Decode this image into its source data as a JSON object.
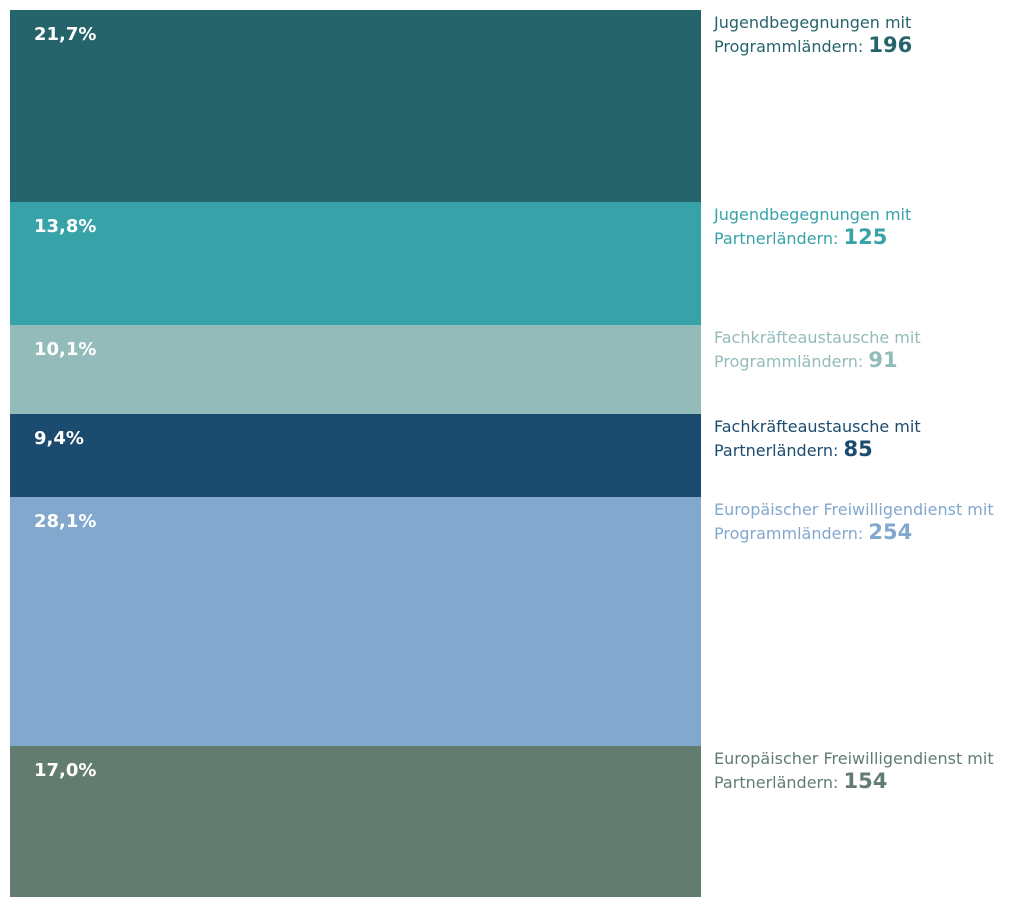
{
  "chart_data": {
    "type": "stacked_bar",
    "ylim": [
      0,
      100
    ],
    "series": [
      {
        "name": "Jugendbegegnungen mit Programmländern:",
        "color": "#25646a",
        "values": [
          21.7
        ],
        "value_labels": [
          "21,7%"
        ],
        "count": 196
      },
      {
        "name": "Jugendbegegnungen mit Partnerländern:",
        "color": "#37a3a8",
        "values": [
          13.8
        ],
        "value_labels": [
          "13,8%"
        ],
        "count": 125
      },
      {
        "name": "Fachkräfteaustausche mit Programmländern:",
        "color": "#93bbb9",
        "values": [
          10.1
        ],
        "value_labels": [
          "10,1%"
        ],
        "count": 91
      },
      {
        "name": "Fachkräfteaustausche mit Partnerländern:",
        "color": "#1b4b6e",
        "values": [
          9.4
        ],
        "value_labels": [
          "9,4%"
        ],
        "count": 85
      },
      {
        "name": "Europäischer Freiwilligendienst mit Programmländern:",
        "color": "#82a8ce",
        "values": [
          28.1
        ],
        "value_labels": [
          "28,1%"
        ],
        "count": 254
      },
      {
        "name": "Europäischer Freiwilligendienst mit Partnerländern:",
        "color": "#627d70",
        "values": [
          17.0
        ],
        "value_labels": [
          "17,0%"
        ],
        "count": 154
      }
    ]
  }
}
